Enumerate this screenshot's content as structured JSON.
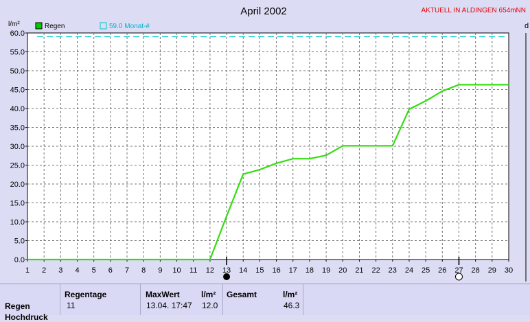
{
  "header": {
    "title": "April 2002",
    "station": "AKTUELL IN ALDINGEN 654mNN",
    "right_edge_label": "d"
  },
  "chart_data": {
    "type": "line",
    "title": "April 2002",
    "ylabel": "l/m²",
    "xlim": [
      1,
      30
    ],
    "ylim": [
      0,
      60
    ],
    "x_ticks": [
      1,
      2,
      3,
      4,
      5,
      6,
      7,
      8,
      9,
      10,
      11,
      12,
      13,
      14,
      15,
      16,
      17,
      18,
      19,
      20,
      21,
      22,
      23,
      24,
      25,
      26,
      27,
      28,
      29,
      30
    ],
    "y_ticks": [
      "0.0",
      "5.0",
      "10.0",
      "15.0",
      "20.0",
      "25.0",
      "30.0",
      "35.0",
      "40.0",
      "45.0",
      "50.0",
      "55.0",
      "60.0"
    ],
    "grid": true,
    "legend": [
      {
        "label": "Regen",
        "color": "#00cc00",
        "filled": true
      },
      {
        "label": "59.0 Monat-#",
        "color": "#00c8c8",
        "filled": false
      }
    ],
    "series": [
      {
        "name": "Regen",
        "color": "#33dd11",
        "x": [
          1,
          12,
          13,
          14,
          15,
          16,
          17,
          18,
          19,
          20,
          21,
          22,
          23,
          24,
          25,
          26,
          27,
          28,
          29,
          30
        ],
        "values": [
          0,
          0,
          11.5,
          22.6,
          23.8,
          25.5,
          26.7,
          26.7,
          27.6,
          30.1,
          30.1,
          30.1,
          30.1,
          39.8,
          42.0,
          44.6,
          46.3,
          46.3,
          46.3,
          46.3
        ]
      }
    ],
    "reference_line": {
      "name": "59.0 Monat-#",
      "value": 59.0,
      "color": "#00c8c8"
    },
    "markers": [
      {
        "x": 13,
        "type": "full-moon-dot"
      },
      {
        "x": 27,
        "type": "open-circle"
      }
    ]
  },
  "stats": {
    "row_label": "Regen",
    "row_label_2": "Hochdruck",
    "regentage_header": "Regentage",
    "regentage_value": "11",
    "maxwert_header": "MaxWert",
    "maxwert_unit": "l/m²",
    "maxwert_date": "13.04.  17:47",
    "maxwert_value": "12.0",
    "gesamt_header": "Gesamt",
    "gesamt_unit": "l/m²",
    "gesamt_value": "46.3"
  }
}
